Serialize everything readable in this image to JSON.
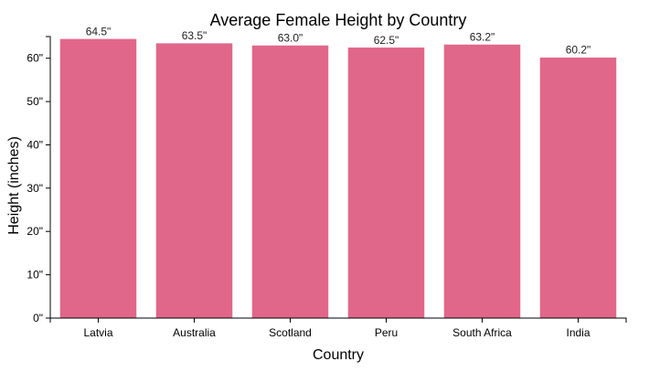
{
  "chart_data": {
    "type": "bar",
    "title": "Average Female Height by Country",
    "xlabel": "Country",
    "ylabel": "Height (inches)",
    "categories": [
      "Latvia",
      "Australia",
      "Scotland",
      "Peru",
      "South Africa",
      "India"
    ],
    "values": [
      64.5,
      63.5,
      63.0,
      62.5,
      63.2,
      60.2
    ],
    "data_labels": [
      "64.5\"",
      "63.5\"",
      "63.0\"",
      "62.5\"",
      "63.2\"",
      "60.2\""
    ],
    "yticks": [
      0,
      10,
      20,
      30,
      40,
      50,
      60
    ],
    "ytick_labels": [
      "0\"",
      "10\"",
      "20\"",
      "30\"",
      "40\"",
      "50\"",
      "60\""
    ],
    "ylim": [
      0,
      65
    ],
    "grid": false,
    "bar_color": "#e0678a"
  }
}
